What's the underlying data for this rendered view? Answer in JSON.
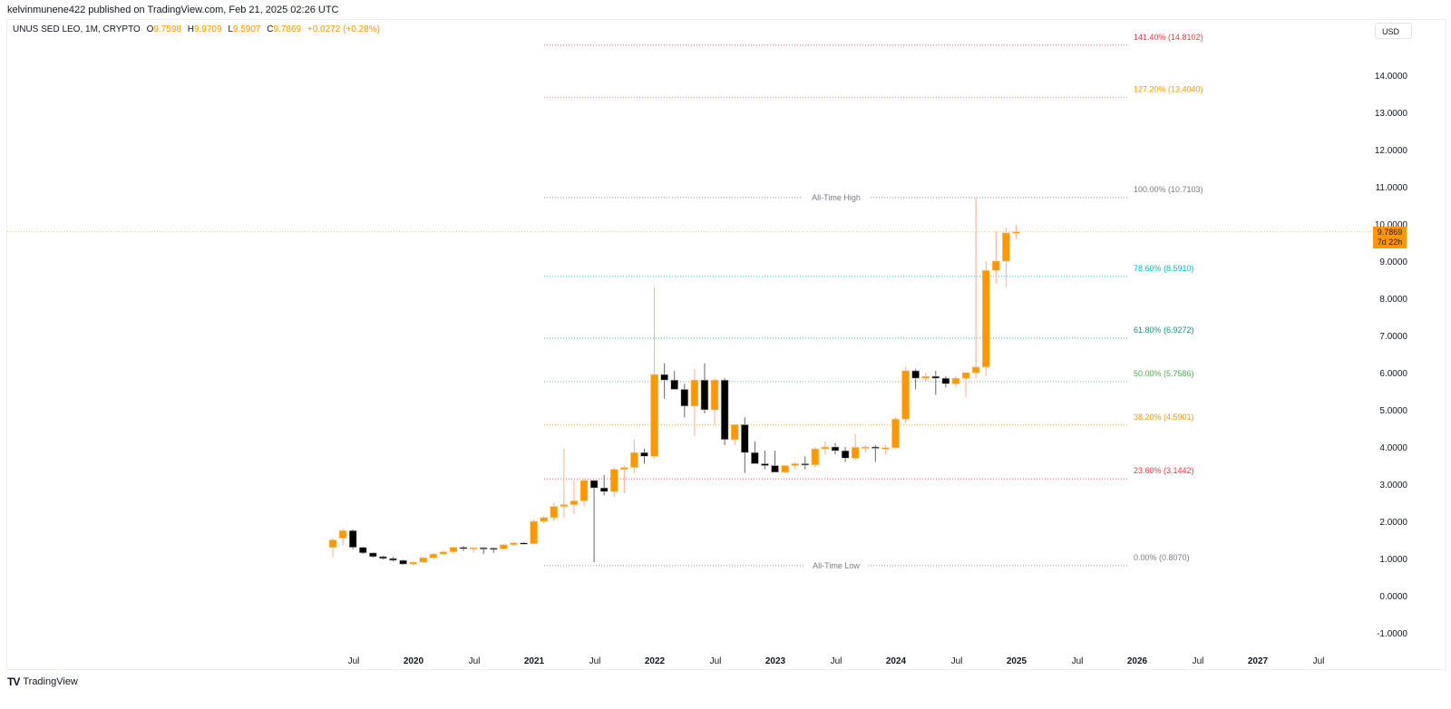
{
  "header": {
    "published": "kelvinmunene422 published on TradingView.com, Feb 21, 2025 02:26 UTC"
  },
  "legend": {
    "symbol": "UNUS SED LEO, 1M, CRYPTO",
    "open_label": "O",
    "open": "9.7598",
    "high_label": "H",
    "high": "9.9709",
    "low_label": "L",
    "low": "9.5907",
    "close_label": "C",
    "close": "9.7869",
    "change": "+0.0272 (+0.28%)"
  },
  "currency_button": "USD",
  "last_price": {
    "value": "9.7869",
    "countdown": "7d 22h"
  },
  "brand": {
    "name": "TradingView"
  },
  "colors": {
    "up": "#ff9800",
    "down": "#000000",
    "grid_text": "#131722"
  },
  "chart_data": {
    "type": "candlestick",
    "title": "UNUS SED LEO, 1M, CRYPTO",
    "ylabel": "USD",
    "ylim": [
      -1.3,
      15.0
    ],
    "y_ticks": [
      "14.0000",
      "13.0000",
      "12.0000",
      "11.0000",
      "10.0000",
      "9.0000",
      "8.0000",
      "7.0000",
      "6.0000",
      "5.0000",
      "4.0000",
      "3.0000",
      "2.0000",
      "1.0000",
      "0.0000",
      "-1.0000"
    ],
    "x_ticks": [
      "Jul",
      "2020",
      "Jul",
      "2021",
      "Jul",
      "2022",
      "Jul",
      "2023",
      "Jul",
      "2024",
      "Jul",
      "2025",
      "Jul",
      "2026",
      "Jul",
      "2027",
      "Jul"
    ],
    "grid": false,
    "fib_levels": [
      {
        "label": "141.40% (14.8102)",
        "price": 14.8102,
        "color": "#f23645"
      },
      {
        "label": "127.20% (13.4040)",
        "price": 13.404,
        "color": "#ff9800"
      },
      {
        "label": "100.00% (10.7103)",
        "price": 10.7103,
        "color": "#787b86",
        "note": "All-Time High"
      },
      {
        "label": "78.60% (8.5910)",
        "price": 8.591,
        "color": "#00bcd4"
      },
      {
        "label": "61.80% (6.9272)",
        "price": 6.9272,
        "color": "#089981"
      },
      {
        "label": "50.00% (5.7586)",
        "price": 5.7586,
        "color": "#4caf50"
      },
      {
        "label": "38.20% (4.5901)",
        "price": 4.5901,
        "color": "#ff9800"
      },
      {
        "label": "23.60% (3.1442)",
        "price": 3.1442,
        "color": "#f23645"
      },
      {
        "label": "0.00% (0.8070)",
        "price": 0.807,
        "color": "#787b86",
        "note": "All-Time Low"
      }
    ],
    "annotations": [
      "All-Time High",
      "All-Time Low"
    ],
    "candles_start": "2019-05",
    "candles": [
      [
        1.3,
        1.55,
        1.05,
        1.5
      ],
      [
        1.55,
        1.8,
        1.35,
        1.75
      ],
      [
        1.75,
        1.78,
        1.25,
        1.3
      ],
      [
        1.3,
        1.32,
        1.12,
        1.15
      ],
      [
        1.15,
        1.17,
        1.02,
        1.05
      ],
      [
        1.05,
        1.08,
        0.97,
        1.0
      ],
      [
        1.0,
        1.05,
        0.92,
        0.95
      ],
      [
        0.95,
        0.97,
        0.83,
        0.85
      ],
      [
        0.85,
        0.92,
        0.8,
        0.9
      ],
      [
        0.9,
        1.05,
        0.88,
        1.02
      ],
      [
        1.02,
        1.15,
        0.98,
        1.12
      ],
      [
        1.12,
        1.22,
        1.08,
        1.18
      ],
      [
        1.18,
        1.32,
        1.15,
        1.3
      ],
      [
        1.3,
        1.34,
        1.2,
        1.28
      ],
      [
        1.28,
        1.3,
        1.15,
        1.29
      ],
      [
        1.29,
        1.3,
        1.12,
        1.28
      ],
      [
        1.28,
        1.3,
        1.15,
        1.26
      ],
      [
        1.26,
        1.4,
        1.24,
        1.37
      ],
      [
        1.37,
        1.45,
        1.34,
        1.42
      ],
      [
        1.42,
        1.44,
        1.38,
        1.4
      ],
      [
        1.4,
        2.05,
        1.38,
        2.0
      ],
      [
        2.0,
        2.15,
        1.95,
        2.1
      ],
      [
        2.1,
        2.5,
        2.0,
        2.4
      ],
      [
        2.4,
        3.95,
        2.1,
        2.45
      ],
      [
        2.45,
        3.1,
        2.2,
        2.55
      ],
      [
        2.55,
        3.15,
        2.4,
        3.1
      ],
      [
        3.1,
        3.1,
        0.9,
        2.9
      ],
      [
        2.9,
        3.25,
        2.7,
        2.8
      ],
      [
        2.8,
        3.45,
        2.65,
        3.4
      ],
      [
        3.4,
        3.5,
        2.75,
        3.45
      ],
      [
        3.45,
        4.2,
        3.3,
        3.85
      ],
      [
        3.85,
        3.95,
        3.55,
        3.75
      ],
      [
        3.75,
        8.3,
        3.7,
        5.95
      ],
      [
        5.95,
        6.25,
        5.3,
        5.8
      ],
      [
        5.8,
        6.05,
        5.55,
        5.55
      ],
      [
        5.55,
        5.7,
        4.8,
        5.1
      ],
      [
        5.1,
        6.1,
        4.3,
        5.8
      ],
      [
        5.8,
        6.25,
        4.9,
        5.0
      ],
      [
        5.0,
        5.85,
        4.6,
        5.8
      ],
      [
        5.8,
        5.85,
        4.05,
        4.2
      ],
      [
        4.2,
        4.55,
        4.05,
        4.6
      ],
      [
        4.6,
        4.8,
        3.3,
        3.85
      ],
      [
        3.85,
        4.15,
        3.7,
        3.55
      ],
      [
        3.55,
        3.9,
        3.4,
        3.5
      ],
      [
        3.5,
        3.9,
        3.4,
        3.32
      ],
      [
        3.32,
        3.5,
        3.3,
        3.5
      ],
      [
        3.5,
        3.6,
        3.4,
        3.55
      ],
      [
        3.55,
        3.75,
        3.4,
        3.52
      ],
      [
        3.52,
        4.0,
        3.45,
        3.95
      ],
      [
        3.95,
        4.15,
        3.8,
        4.0
      ],
      [
        4.0,
        4.1,
        3.8,
        3.9
      ],
      [
        3.9,
        4.0,
        3.6,
        3.7
      ],
      [
        3.7,
        4.35,
        3.65,
        3.99
      ],
      [
        3.99,
        4.05,
        3.85,
        4.0
      ],
      [
        4.0,
        4.05,
        3.6,
        3.98
      ],
      [
        3.98,
        4.05,
        3.8,
        3.98
      ],
      [
        3.98,
        4.8,
        3.95,
        4.75
      ],
      [
        4.75,
        6.15,
        4.65,
        6.05
      ],
      [
        6.05,
        6.1,
        5.55,
        5.85
      ],
      [
        5.85,
        6.0,
        5.75,
        5.9
      ],
      [
        5.9,
        6.05,
        5.4,
        5.85
      ],
      [
        5.85,
        5.9,
        5.6,
        5.7
      ],
      [
        5.7,
        5.9,
        5.6,
        5.85
      ],
      [
        5.85,
        6.0,
        5.35,
        6.0
      ],
      [
        6.0,
        10.71,
        5.85,
        6.15
      ],
      [
        6.15,
        9.0,
        5.9,
        8.75
      ],
      [
        8.75,
        9.8,
        8.4,
        9.0
      ],
      [
        9.0,
        9.9,
        8.3,
        9.76
      ],
      [
        9.76,
        9.97,
        9.59,
        9.79
      ]
    ]
  }
}
